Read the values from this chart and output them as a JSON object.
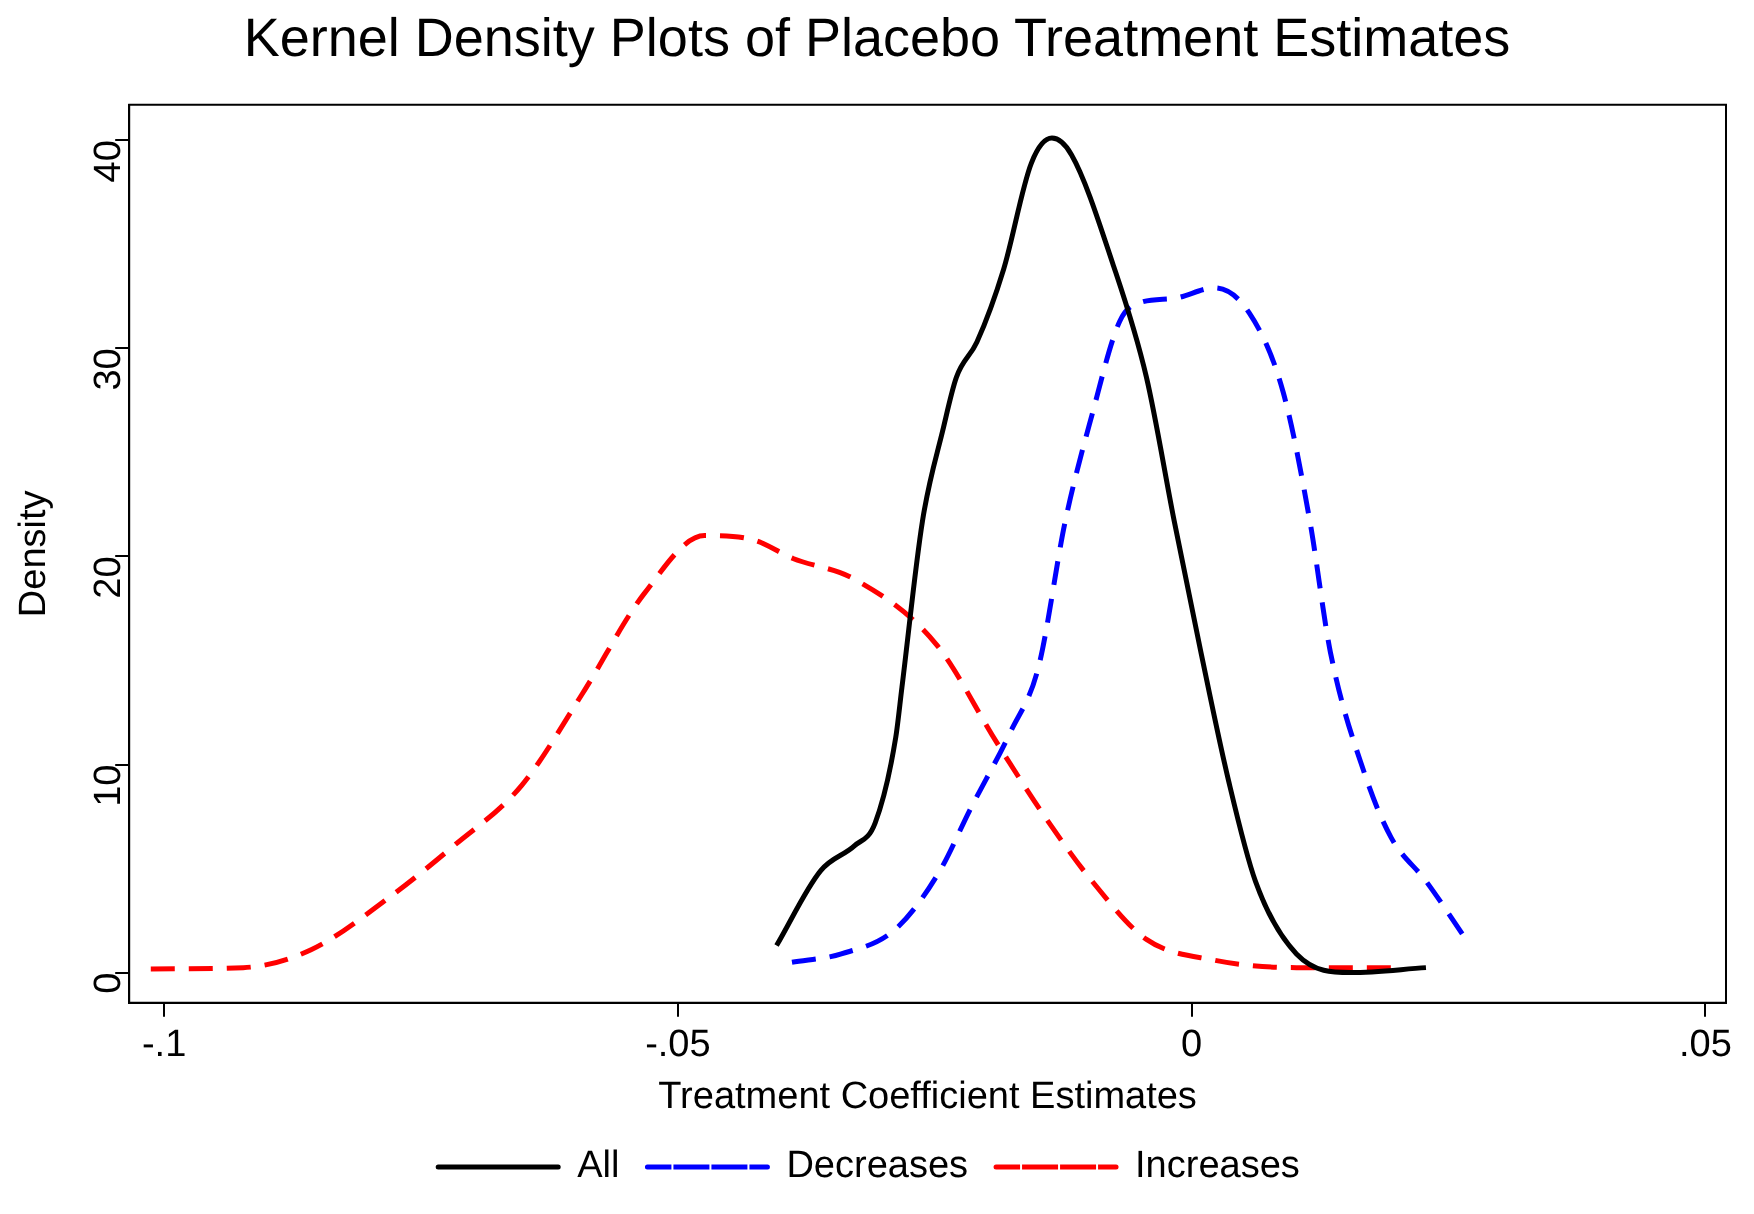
{
  "chart_data": {
    "type": "line",
    "title": "Kernel Density Plots of Placebo Treatment Estimates",
    "xlabel": "Treatment Coefficient Estimates",
    "ylabel": "Density",
    "xlim": [
      -0.1034,
      0.052
    ],
    "ylim": [
      -1.45,
      41.7
    ],
    "xticks": [
      {
        "value": -0.1,
        "label": "-.1"
      },
      {
        "value": -0.05,
        "label": "-.05"
      },
      0,
      {
        "value": 0.05,
        "label": ".05"
      }
    ],
    "yticks": [
      0,
      10,
      20,
      30,
      40
    ],
    "grid": false,
    "legend": "bottom",
    "marker": "none",
    "series": [
      {
        "name": "All",
        "color": "#000000",
        "line_style": "solid",
        "x": [
          -0.0404,
          -0.0361,
          -0.0328,
          -0.0308,
          -0.0288,
          -0.0282,
          -0.0262,
          -0.0242,
          -0.0229,
          -0.0209,
          -0.0183,
          -0.0156,
          -0.0136,
          -0.0117,
          -0.0077,
          -0.0044,
          -0.0017,
          0.0009,
          0.0036,
          0.0062,
          0.0102,
          0.0155,
          0.0228
        ],
        "values": [
          1.3,
          4.9,
          6.1,
          7.2,
          11.3,
          13.7,
          21.7,
          26.1,
          28.6,
          30.3,
          33.8,
          38.9,
          40.1,
          39.3,
          34.1,
          28.6,
          21.7,
          15.4,
          9.2,
          4.4,
          0.9,
          0,
          0.24
        ]
      },
      {
        "name": "Decreases",
        "color": "#0000ff",
        "line_style": "dashed",
        "x": [
          -0.0389,
          -0.0341,
          -0.0288,
          -0.0245,
          -0.0216,
          -0.0176,
          -0.0149,
          -0.0123,
          -0.0097,
          -0.007,
          -0.005,
          -0.0017,
          0.0022,
          0.0056,
          0.0089,
          0.0115,
          0.0135,
          0.0168,
          0.0194,
          0.0228,
          0.0267
        ],
        "values": [
          0.5,
          0.9,
          2.1,
          4.9,
          7.8,
          11.6,
          14.7,
          21.7,
          26.8,
          31.3,
          32.2,
          32.4,
          32.9,
          31.7,
          27.9,
          21.7,
          15.4,
          9.6,
          6.5,
          4.4,
          1.6
        ]
      },
      {
        "name": "Increases",
        "color": "#ff0000",
        "line_style": "dashed",
        "x": [
          -0.1013,
          -0.0923,
          -0.0857,
          -0.0784,
          -0.0718,
          -0.0652,
          -0.0593,
          -0.0533,
          -0.0474,
          -0.0427,
          -0.0388,
          -0.0328,
          -0.0249,
          -0.0189,
          -0.0143,
          -0.0097,
          -0.0044,
          0.0022,
          0.0102,
          0.0201
        ],
        "values": [
          0.18,
          0.24,
          1.1,
          3.5,
          6.1,
          9,
          13.4,
          18.2,
          21,
          20.8,
          19.9,
          18.9,
          15.8,
          11,
          7.5,
          4.4,
          1.6,
          0.6,
          0.24,
          0.24
        ]
      }
    ]
  }
}
